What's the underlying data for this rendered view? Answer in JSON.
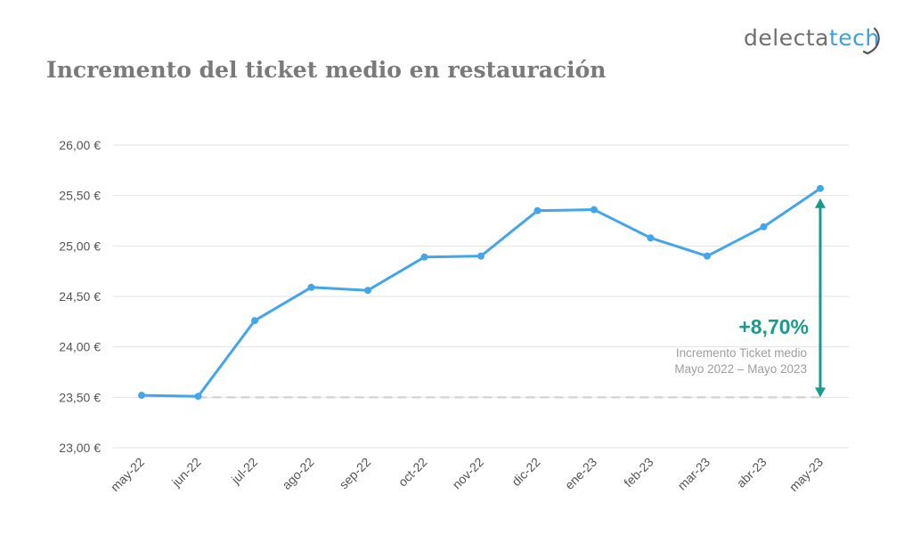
{
  "title": "Incremento del ticket medio en restauración",
  "logo": {
    "part1": "delecta",
    "part2": "tech"
  },
  "annotation": {
    "percent": "+8,70%",
    "line1": "Incremento Ticket medio",
    "line2": "Mayo 2022 – Mayo 2023"
  },
  "colors": {
    "line": "#43a6ea",
    "arrow": "#1a9c8c",
    "grid": "#e3e3e3",
    "axis_text": "#555555",
    "baseline": "#d6d6d6"
  },
  "chart_data": {
    "type": "line",
    "categories": [
      "may-22",
      "jun-22",
      "jul-22",
      "ago-22",
      "sep-22",
      "oct-22",
      "nov-22",
      "dic-22",
      "ene-23",
      "feb-23",
      "mar-23",
      "abr-23",
      "may-23"
    ],
    "series": [
      {
        "values": [
          23.52,
          23.51,
          24.26,
          24.59,
          24.56,
          24.89,
          24.9,
          25.35,
          25.36,
          25.08,
          24.9,
          25.19,
          25.57
        ]
      }
    ],
    "ylim": [
      23.0,
      26.0
    ],
    "yticks": [
      23.0,
      23.5,
      24.0,
      24.5,
      25.0,
      25.5,
      26.0
    ],
    "ytick_labels": [
      "23,00 €",
      "23,50 €",
      "24,00 €",
      "24,50 €",
      "25,00 €",
      "25,50 €",
      "26,00 €"
    ],
    "reference_line": 23.5,
    "arrow_range": [
      23.5,
      25.57
    ],
    "grid": true,
    "legend": "none"
  }
}
